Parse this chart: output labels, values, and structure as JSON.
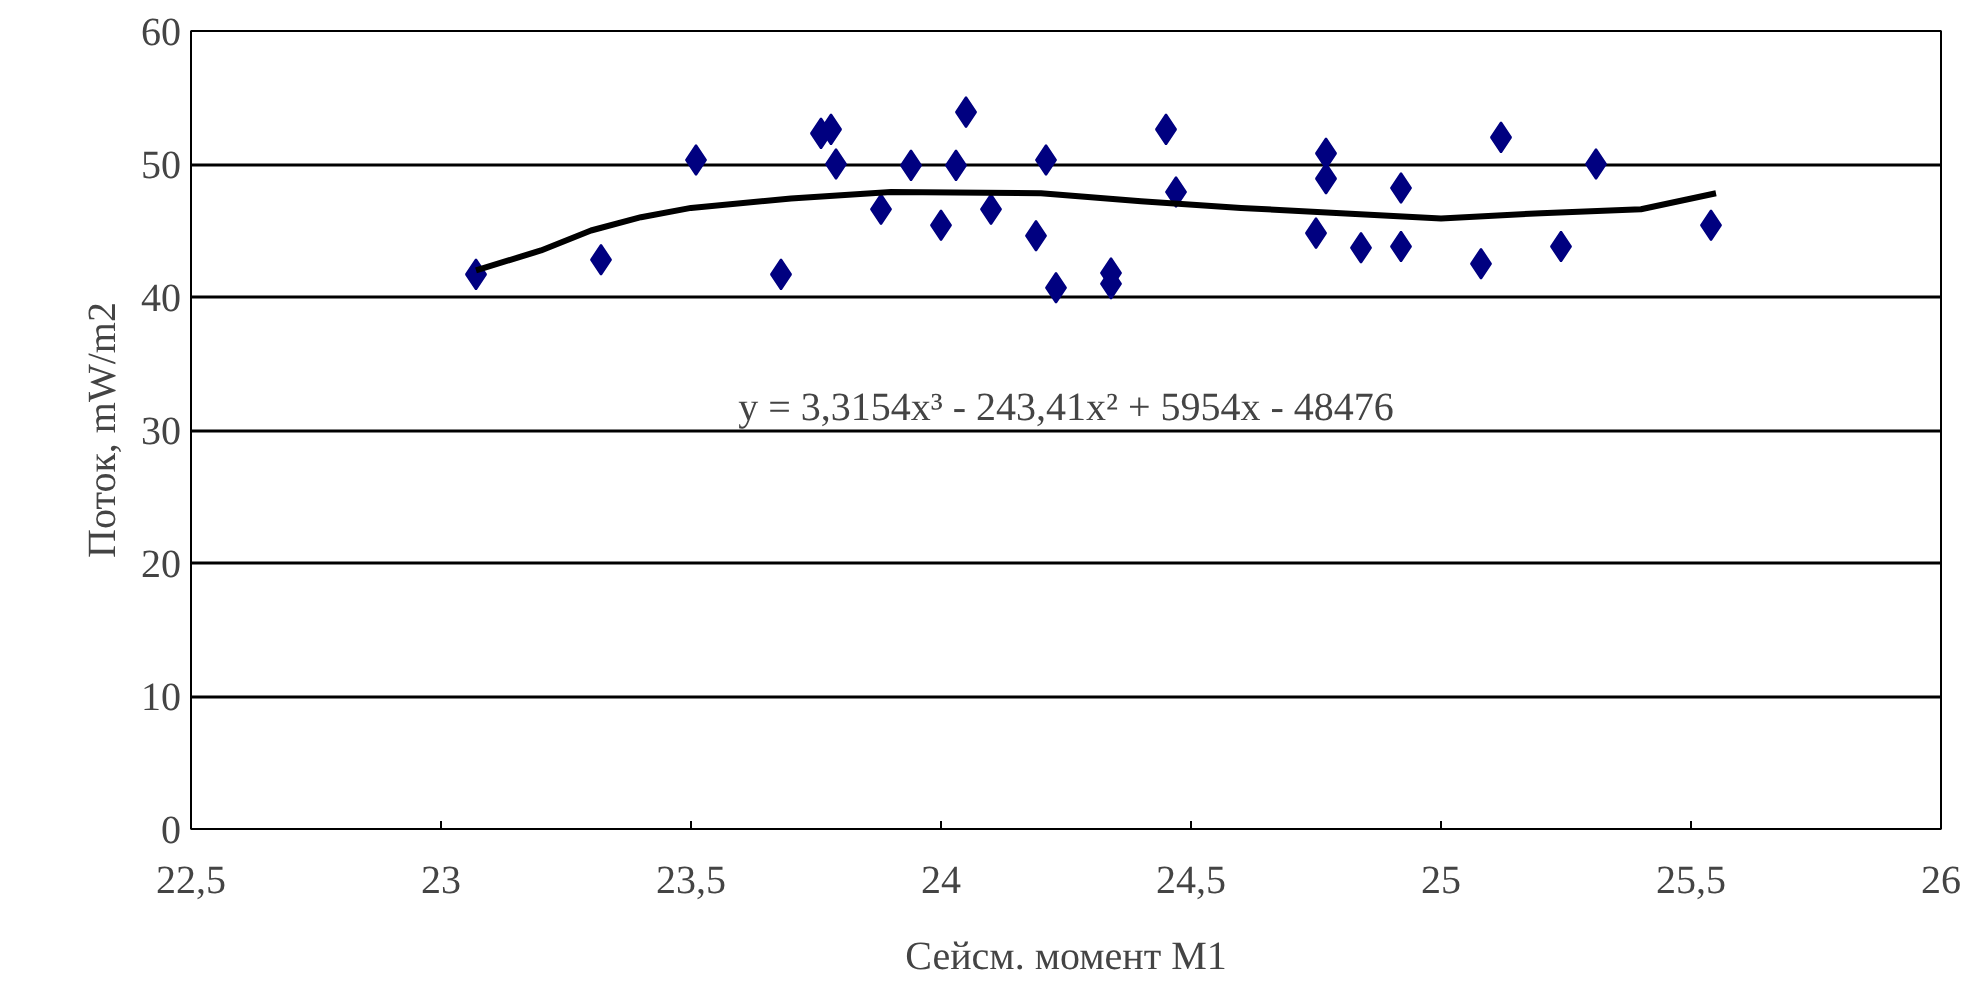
{
  "chart_data": {
    "type": "scatter",
    "xlabel": "Сейсм. момент M1",
    "ylabel": "Поток, mW/m2",
    "xlim": [
      22.5,
      26
    ],
    "xticks": [
      {
        "value": 22.5,
        "label": "22,5"
      },
      23,
      {
        "value": 23.5,
        "label": "23,5"
      },
      24,
      {
        "value": 24.5,
        "label": "24,5"
      },
      25,
      {
        "value": 25.5,
        "label": "25,5"
      },
      26
    ],
    "ylim": [
      0,
      60
    ],
    "yticks": [
      0,
      10,
      20,
      30,
      40,
      50,
      60
    ],
    "grid": "y",
    "marker": "diamond",
    "annotations": [
      "y = 3,3154x³ - 243,41x² + 5954x - 48476"
    ],
    "series": [
      {
        "color": "#000080",
        "x": [
          23.07,
          23.32,
          23.51,
          23.68,
          23.76,
          23.78,
          23.79,
          23.88,
          23.94,
          24.0,
          24.03,
          24.05,
          24.1,
          24.19,
          24.21,
          24.23,
          24.34,
          24.34,
          24.45,
          24.47,
          24.75,
          24.77,
          24.77,
          24.84,
          24.92,
          24.92,
          25.08,
          25.12,
          25.24,
          25.31,
          25.54
        ],
        "values": [
          41.7,
          42.8,
          50.3,
          41.7,
          52.3,
          52.6,
          50.0,
          46.6,
          49.9,
          45.4,
          49.9,
          53.9,
          46.6,
          44.6,
          50.3,
          40.7,
          41.8,
          41.0,
          52.6,
          47.9,
          44.8,
          50.8,
          48.9,
          43.7,
          48.2,
          43.8,
          42.5,
          52.0,
          43.8,
          50.0,
          45.4
        ]
      },
      {
        "type": "line",
        "color": "#000000",
        "line_style": "solid",
        "marker": "none",
        "x": [
          23.07,
          23.2,
          23.3,
          23.4,
          23.5,
          23.7,
          23.9,
          24.2,
          24.4,
          24.6,
          24.8,
          25.0,
          25.2,
          25.4,
          25.55
        ],
        "values": [
          42.0,
          43.5,
          45.0,
          46.0,
          46.7,
          47.4,
          47.9,
          47.8,
          47.2,
          46.7,
          46.3,
          45.9,
          46.3,
          46.6,
          47.8
        ]
      }
    ]
  }
}
